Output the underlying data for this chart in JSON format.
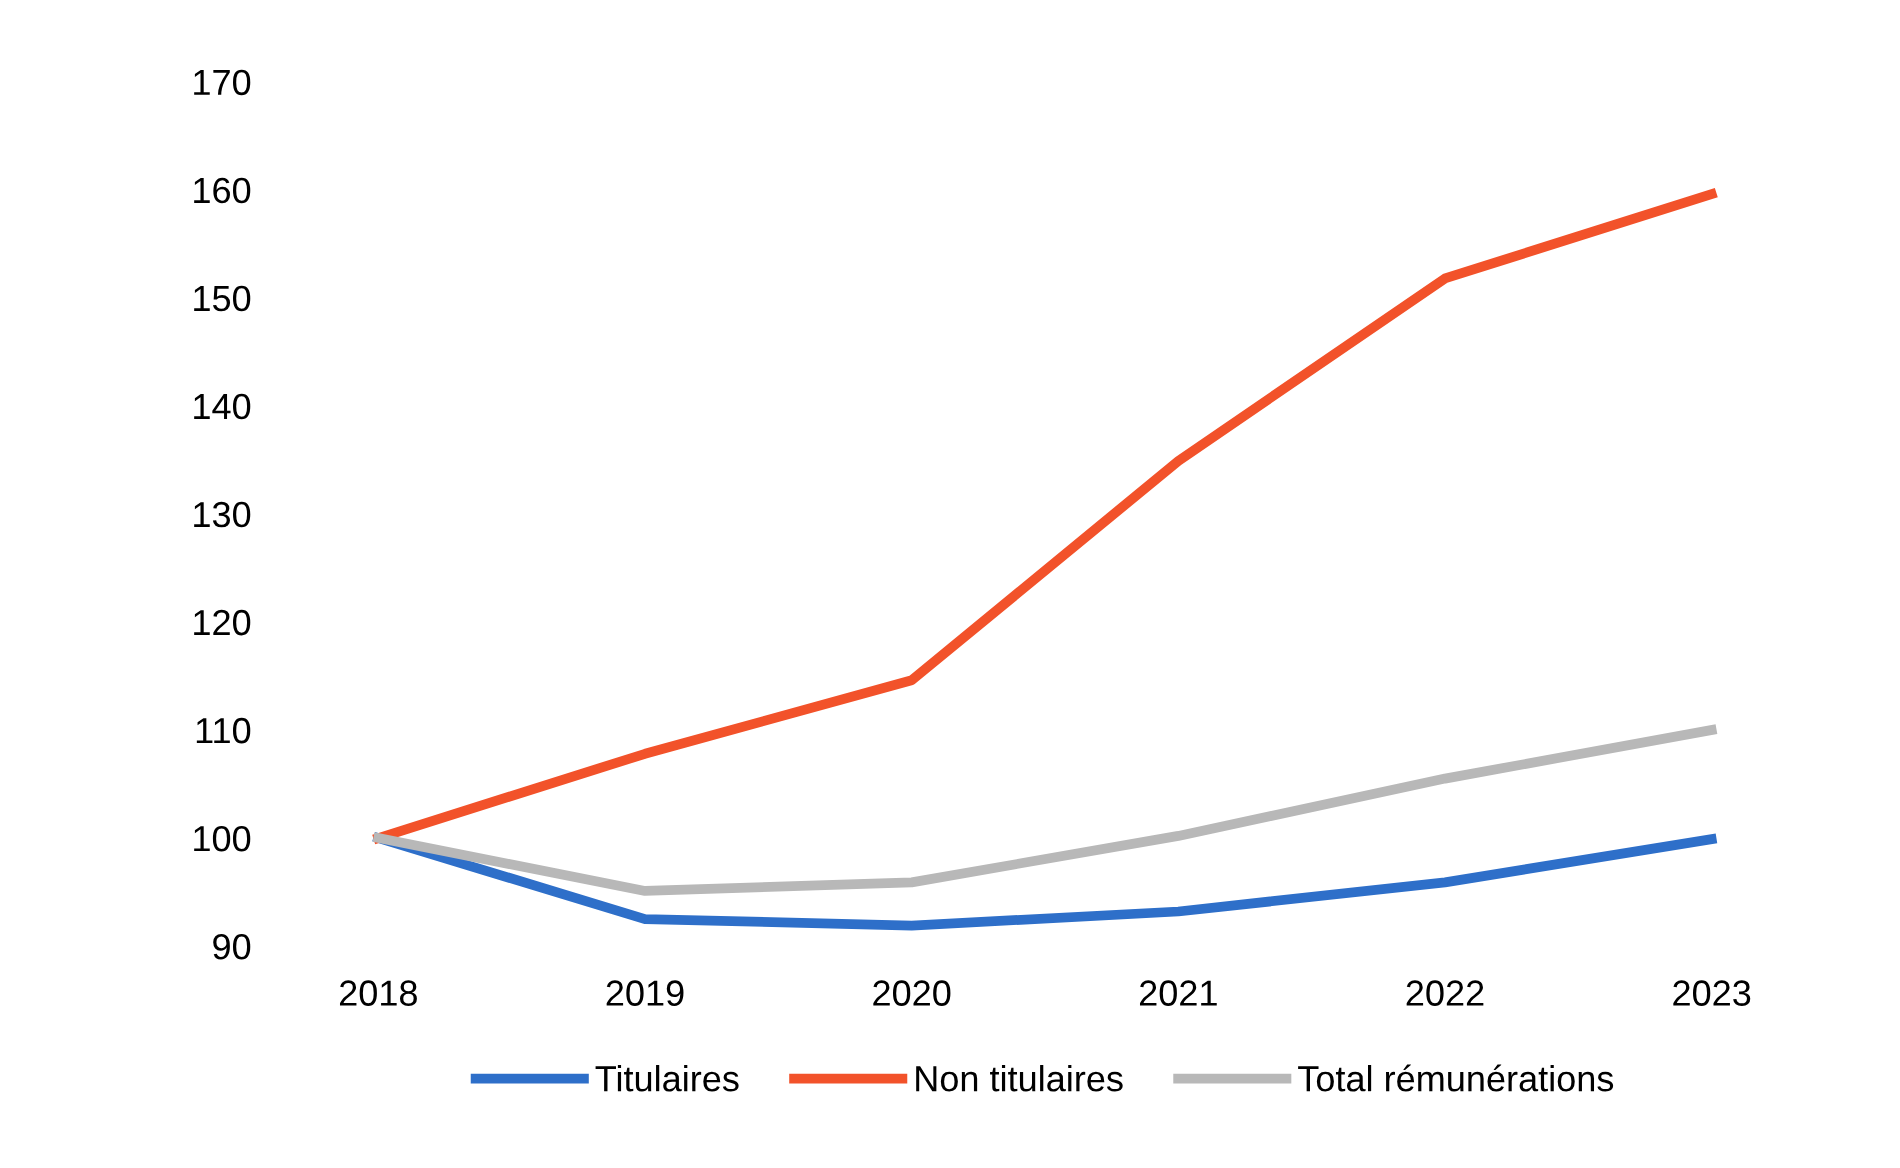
{
  "chart_data": {
    "type": "line",
    "categories": [
      "2018",
      "2019",
      "2020",
      "2021",
      "2022",
      "2023"
    ],
    "series": [
      {
        "name": "Titulaires",
        "color": "#2e6fc9",
        "values": [
          100,
          92.5,
          91.9,
          93.2,
          95.9,
          99.9
        ]
      },
      {
        "name": "Non titulaires",
        "color": "#f2522a",
        "values": [
          100,
          107.8,
          114.6,
          134.9,
          151.8,
          159.6
        ]
      },
      {
        "name": "Total rémunérations",
        "color": "#b8b8b8",
        "values": [
          100,
          95.1,
          95.9,
          100.2,
          105.5,
          110
        ]
      }
    ],
    "ylim": [
      90,
      170
    ],
    "yticks": [
      90,
      100,
      110,
      120,
      130,
      140,
      150,
      160,
      170
    ],
    "grid": false,
    "legend": "bottom",
    "marker": "none",
    "line_style": "solid"
  }
}
